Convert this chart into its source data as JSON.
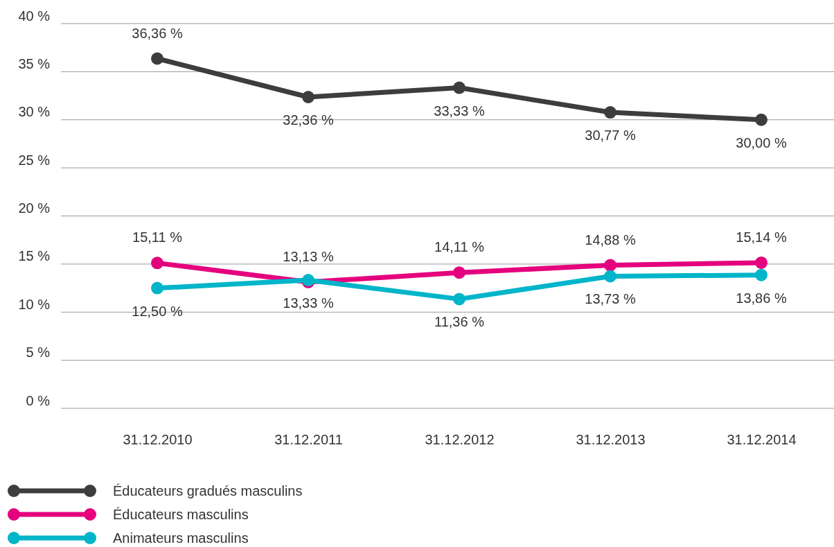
{
  "chart_data": {
    "type": "line",
    "categories": [
      "31.12.2010",
      "31.12.2011",
      "31.12.2012",
      "31.12.2013",
      "31.12.2014"
    ],
    "ylim": [
      0,
      40
    ],
    "yticks": [
      {
        "value": 0,
        "label": "0 %"
      },
      {
        "value": 5,
        "label": "5 %"
      },
      {
        "value": 10,
        "label": "10 %"
      },
      {
        "value": 15,
        "label": "15 %"
      },
      {
        "value": 20,
        "label": "20 %"
      },
      {
        "value": 25,
        "label": "25 %"
      },
      {
        "value": 30,
        "label": "30 %"
      },
      {
        "value": 35,
        "label": "35 %"
      },
      {
        "value": 40,
        "label": "40 %"
      }
    ],
    "grid": "y",
    "legend": "bottom left",
    "marker": "circle",
    "line_style": "solid",
    "series": [
      {
        "name": "Éducateurs gradués masculins",
        "color": "#3d3d3d",
        "values": [
          36.36,
          32.36,
          33.33,
          30.77,
          30.0
        ],
        "value_labels": [
          "36,36 %",
          "32,36 %",
          "33,33 %",
          "30,77 %",
          "30,00 %"
        ]
      },
      {
        "name": "Éducateurs masculins",
        "color": "#e5007d",
        "values": [
          15.11,
          13.13,
          14.11,
          14.88,
          15.14
        ],
        "value_labels": [
          "15,11 %",
          "13,13 %",
          "14,11 %",
          "14,88 %",
          "15,14 %"
        ]
      },
      {
        "name": "Animateurs masculins",
        "color": "#00b5c9",
        "values": [
          12.5,
          13.33,
          11.36,
          13.73,
          13.86
        ],
        "value_labels": [
          "12,50 %",
          "13,33 %",
          "11,36 %",
          "13,73 %",
          "13,86 %"
        ]
      }
    ]
  }
}
